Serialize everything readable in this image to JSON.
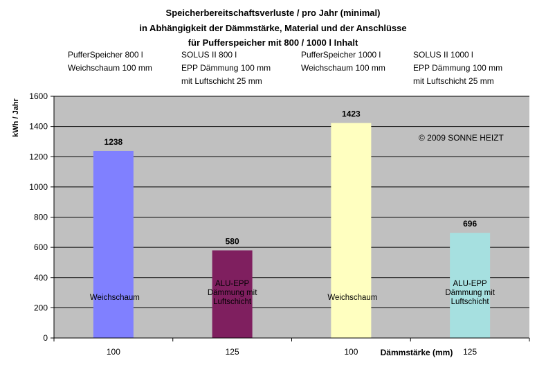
{
  "title_lines": [
    "Speicherbereitschaftsverluste / pro Jahr (minimal)",
    "in Abhängigkeit der Dämmstärke, Material und der Anschlüsse",
    "für Pufferspeicher mit 800 / 1000 l Inhalt"
  ],
  "descriptions": [
    [
      "PufferSpeicher 800 l",
      "Weichschaum 100 mm"
    ],
    [
      "SOLUS II 800 l",
      "EPP Dämmung 100 mm",
      "mit Luftschicht 25 mm"
    ],
    [
      "PufferSpeicher 1000 l",
      "Weichschaum 100 mm"
    ],
    [
      "SOLUS II 1000 l",
      "EPP Dämmung 100 mm",
      "mit Luftschicht 25 mm"
    ]
  ],
  "copyright": "© 2009 SONNE HEIZT",
  "colors": {
    "plot_background": "#c0c0c0",
    "gridline": "#000000",
    "bars": [
      "#8080ff",
      "#7f1f5f",
      "#ffffc0",
      "#a6e0e0"
    ]
  },
  "chart_data": {
    "type": "bar",
    "categories": [
      "100",
      "125",
      "100",
      "125"
    ],
    "values": [
      1238,
      580,
      1423,
      696
    ],
    "data_labels": [
      "1238",
      "580",
      "1423",
      "696"
    ],
    "bar_texts": [
      [
        "Weichschaum"
      ],
      [
        "ALU-EPP",
        "Dämmung mit",
        "Luftschicht"
      ],
      [
        "Weichschaum"
      ],
      [
        "ALU-EPP",
        "Dämmung mit",
        "Luftschicht"
      ]
    ],
    "ylabel": "kWh / Jahr",
    "xlabel": "Dämmstärke (mm)",
    "ylim": [
      0,
      1600
    ],
    "yticks": [
      0,
      200,
      400,
      600,
      800,
      1000,
      1200,
      1400,
      1600
    ],
    "grid": true
  }
}
